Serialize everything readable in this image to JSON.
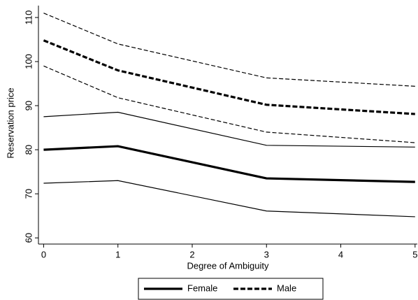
{
  "chart_data": {
    "type": "line",
    "x_label": "Degree of Ambiguity",
    "y_label": "Reservation price",
    "x": [
      0,
      1,
      3,
      5
    ],
    "series": [
      {
        "name": "Female",
        "color": "#000000",
        "dash": "solid",
        "values": [
          80,
          80.8,
          73.5,
          72.7
        ],
        "ci_upper": [
          87.5,
          88.5,
          81,
          80.6
        ],
        "ci_lower": [
          72.4,
          73,
          66.1,
          64.8
        ]
      },
      {
        "name": "Male",
        "color": "#000000",
        "dash": "dashed",
        "values": [
          104.8,
          98,
          90.2,
          88.1
        ],
        "ci_upper": [
          111,
          104,
          96.3,
          94.4
        ],
        "ci_lower": [
          99,
          91.8,
          84,
          81.6
        ]
      }
    ],
    "xlim": [
      -0.07,
      5.03
    ],
    "xticks": [
      0,
      1,
      2,
      3,
      4,
      5
    ],
    "ylim": [
      58.6,
      112.7
    ],
    "yticks": [
      60,
      70,
      80,
      90,
      100,
      110
    ],
    "legend": "bottom"
  }
}
